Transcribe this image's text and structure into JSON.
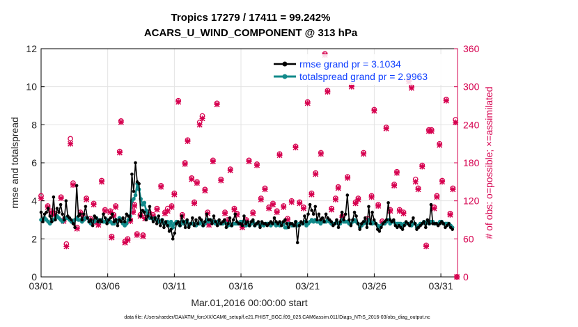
{
  "chart_data": {
    "type": "line",
    "title_line1": "Tropics 17279 / 17411 = 99.242%",
    "title_line2": "ACARS_U_WIND_COMPONENT @ 313 hPa",
    "xlabel": "Mar.01,2016 00:00:00 start",
    "ylabel": "rmse and totalspread",
    "ylabel_right": "# of obs: o=possible; ×=assimilated",
    "x_ticks": [
      "03/01",
      "03/06",
      "03/11",
      "03/16",
      "03/21",
      "03/26",
      "03/31"
    ],
    "x_tick_days": [
      0,
      5,
      10,
      15,
      20,
      25,
      30
    ],
    "xlim": [
      0,
      31.25
    ],
    "ylim": [
      0,
      12
    ],
    "y_ticks": [
      "0",
      "2",
      "4",
      "6",
      "8",
      "10",
      "12"
    ],
    "ylim_right": [
      0,
      360
    ],
    "y_ticks_right": [
      "0",
      "60",
      "120",
      "180",
      "240",
      "300",
      "360"
    ],
    "footer": "data file: /Users/raeder/DAI/ATM_forcXX/CAM6_setup/f.e21.FHIST_BGC.f09_025.CAM6assim.011/Diags_NTrS_2016-03/obs_diag_output.nc",
    "series": [
      {
        "name": "rmse",
        "legend": "rmse grand pr = 3.1034",
        "color": "#000000",
        "values": [
          3.4,
          2.9,
          3.3,
          3.4,
          3.6,
          3.2,
          2.9,
          4.2,
          3.0,
          3.6,
          3.4,
          3.8,
          3.3,
          3.0,
          4.0,
          3.2,
          3.1,
          3.0,
          2.8,
          2.6,
          4.8,
          3.2,
          3.3,
          3.0,
          3.3,
          3.7,
          3.1,
          2.9,
          3.0,
          2.7,
          3.2,
          3.1,
          2.9,
          3.0,
          2.9,
          3.3,
          3.1,
          2.8,
          3.0,
          3.1,
          3.3,
          2.9,
          3.0,
          2.7,
          3.0,
          2.9,
          3.1,
          2.9,
          3.3,
          3.2,
          3.0,
          5.4,
          4.5,
          6.0,
          5.0,
          4.9,
          3.2,
          3.5,
          3.4,
          3.0,
          3.2,
          3.7,
          3.1,
          2.9,
          3.1,
          2.8,
          3.2,
          2.7,
          3.0,
          2.6,
          2.9,
          2.7,
          2.4,
          2.5,
          2.0,
          2.3,
          2.8,
          2.9,
          2.7,
          3.2,
          2.9,
          2.6,
          3.0,
          2.6,
          2.8,
          3.1,
          2.7,
          3.0,
          2.8,
          3.1,
          3.0,
          2.7,
          2.9,
          3.3,
          3.0,
          3.0,
          2.8,
          3.2,
          2.9,
          2.7,
          3.0,
          2.8,
          2.9,
          3.0,
          2.6,
          2.8,
          3.1,
          2.7,
          3.0,
          3.3,
          2.9,
          2.8,
          2.8,
          2.7,
          3.2,
          2.8,
          2.9,
          2.7,
          2.9,
          3.0,
          2.7,
          2.8,
          2.9,
          2.6,
          2.9,
          2.8,
          2.8,
          2.7,
          2.8,
          2.9,
          2.8,
          3.1,
          2.9,
          2.8,
          2.9,
          2.7,
          2.9,
          3.0,
          2.8,
          2.6,
          2.8,
          2.8,
          2.7,
          2.9,
          1.8,
          2.7,
          2.9,
          2.8,
          3.2,
          2.9,
          3.3,
          3.8,
          3.5,
          3.3,
          3.7,
          3.0,
          3.3,
          3.0,
          3.1,
          2.9,
          3.3,
          3.1,
          3.0,
          2.9,
          2.7,
          2.8,
          3.0,
          2.6,
          2.9,
          3.4,
          3.0,
          3.3,
          4.3,
          3.0,
          2.7,
          3.0,
          3.4,
          3.2,
          2.8,
          2.5,
          2.8,
          2.9,
          3.1,
          2.6,
          3.7,
          2.8,
          3.4,
          3.0,
          2.8,
          2.5,
          2.4,
          2.6,
          2.8,
          2.9,
          3.0,
          3.9,
          3.0,
          2.9,
          3.0,
          2.7,
          2.6,
          2.7,
          2.6,
          2.5,
          2.7,
          2.9,
          2.8,
          2.7,
          2.9,
          3.1,
          2.8,
          2.5,
          2.6,
          2.7,
          2.8,
          2.9,
          2.6,
          3.0,
          2.8,
          3.8,
          2.8,
          2.8,
          2.8,
          2.7,
          2.8,
          2.9,
          2.8,
          2.6,
          2.7,
          2.8,
          2.6,
          2.5
        ]
      },
      {
        "name": "totalspread",
        "legend": "totalspread grand pr = 2.9963",
        "color": "#118a8a",
        "values": [
          3.0,
          3.0,
          3.1,
          3.0,
          2.9,
          2.8,
          3.0,
          3.0,
          3.1,
          3.2,
          3.1,
          3.0,
          2.9,
          3.0,
          3.1,
          3.1,
          3.0,
          2.9,
          2.9,
          3.0,
          3.1,
          3.0,
          3.0,
          2.9,
          3.0,
          3.1,
          3.1,
          2.9,
          2.8,
          2.9,
          2.9,
          3.1,
          3.0,
          2.9,
          3.0,
          2.9,
          2.9,
          3.0,
          2.9,
          2.9,
          2.8,
          2.8,
          3.0,
          2.9,
          3.1,
          3.0,
          2.8,
          2.7,
          2.8,
          3.0,
          3.2,
          4.0,
          4.1,
          4.3,
          4.9,
          4.6,
          4.1,
          3.8,
          3.9,
          3.5,
          3.3,
          3.1,
          3.1,
          3.0,
          3.1,
          3.0,
          2.9,
          2.9,
          3.0,
          2.8,
          2.8,
          2.9,
          2.7,
          2.9,
          2.6,
          2.8,
          2.9,
          2.8,
          2.7,
          2.9,
          2.8,
          2.9,
          2.9,
          2.7,
          2.8,
          2.8,
          2.8,
          2.7,
          2.8,
          2.8,
          2.9,
          2.7,
          2.8,
          3.0,
          2.9,
          3.0,
          2.9,
          2.9,
          2.8,
          2.9,
          2.8,
          2.8,
          2.8,
          2.9,
          2.8,
          2.7,
          2.8,
          2.7,
          2.8,
          2.8,
          2.8,
          2.8,
          2.9,
          2.9,
          2.9,
          2.7,
          2.8,
          2.7,
          2.8,
          2.9,
          2.7,
          2.8,
          2.8,
          2.7,
          2.8,
          2.7,
          2.8,
          2.8,
          2.8,
          2.7,
          2.8,
          2.8,
          2.7,
          2.8,
          2.7,
          2.8,
          2.8,
          2.6,
          2.6,
          2.8,
          2.8,
          2.7,
          2.7,
          2.9,
          2.7,
          2.8,
          2.8,
          2.8,
          2.9,
          2.7,
          2.8,
          2.9,
          3.0,
          2.9,
          3.0,
          2.9,
          2.9,
          2.8,
          2.9,
          2.9,
          2.9,
          3.0,
          2.9,
          2.8,
          2.8,
          2.8,
          2.9,
          2.8,
          2.8,
          3.0,
          2.9,
          2.9,
          2.9,
          2.8,
          2.8,
          2.9,
          3.0,
          2.9,
          2.8,
          2.6,
          2.7,
          2.8,
          2.9,
          2.8,
          3.0,
          2.9,
          2.8,
          2.9,
          2.8,
          2.7,
          2.6,
          2.7,
          2.8,
          2.8,
          2.9,
          3.0,
          2.8,
          2.9,
          2.9,
          2.8,
          2.8,
          2.8,
          2.8,
          2.7,
          2.8,
          2.8,
          2.8,
          2.8,
          2.7,
          2.8,
          2.8,
          2.6,
          2.7,
          2.8,
          2.8,
          2.9,
          2.8,
          2.9,
          2.8,
          2.9,
          2.9,
          2.8,
          2.8,
          2.8,
          2.9,
          2.9,
          2.8,
          2.8,
          2.8,
          2.8,
          2.7,
          2.6
        ]
      }
    ],
    "obs_counts": {
      "name": "# of obs",
      "color": "#d6004f",
      "points": [
        [
          0.0,
          128,
          124
        ],
        [
          0.5,
          112,
          110
        ],
        [
          0.75,
          104,
          102
        ],
        [
          1.0,
          100,
          98
        ],
        [
          1.5,
          126,
          124
        ],
        [
          1.7,
          90,
          88
        ],
        [
          1.9,
          52,
          48
        ],
        [
          2.2,
          218,
          210
        ],
        [
          2.4,
          148,
          145
        ],
        [
          2.7,
          78,
          76
        ],
        [
          2.95,
          102,
          100
        ],
        [
          3.2,
          94,
          92
        ],
        [
          3.4,
          124,
          122
        ],
        [
          3.7,
          92,
          90
        ],
        [
          3.95,
          116,
          114
        ],
        [
          4.1,
          88,
          86
        ],
        [
          4.3,
          84,
          82
        ],
        [
          4.55,
          152,
          150
        ],
        [
          4.8,
          106,
          104
        ],
        [
          5.2,
          104,
          102
        ],
        [
          5.3,
          64,
          62
        ],
        [
          5.45,
          98,
          96
        ],
        [
          5.6,
          112,
          110
        ],
        [
          5.9,
          198,
          196
        ],
        [
          6.0,
          246,
          244
        ],
        [
          6.3,
          56,
          54
        ],
        [
          6.5,
          60,
          58
        ],
        [
          6.7,
          90,
          88
        ],
        [
          6.9,
          104,
          102
        ],
        [
          7.0,
          114,
          112
        ],
        [
          7.2,
          68,
          66
        ],
        [
          7.45,
          98,
          96
        ],
        [
          7.65,
          66,
          64
        ],
        [
          7.8,
          94,
          92
        ],
        [
          8.1,
          102,
          100
        ],
        [
          8.4,
          98,
          96
        ],
        [
          8.7,
          108,
          106
        ],
        [
          9.0,
          144,
          142
        ],
        [
          9.3,
          102,
          100
        ],
        [
          9.5,
          108,
          104
        ],
        [
          9.8,
          112,
          110
        ],
        [
          10.0,
          132,
          130
        ],
        [
          10.3,
          278,
          276
        ],
        [
          10.6,
          98,
          96
        ],
        [
          10.8,
          180,
          178
        ],
        [
          11.0,
          216,
          214
        ],
        [
          11.3,
          156,
          154
        ],
        [
          11.5,
          118,
          116
        ],
        [
          11.7,
          150,
          148
        ],
        [
          11.9,
          244,
          240
        ],
        [
          12.1,
          254,
          250
        ],
        [
          12.3,
          138,
          136
        ],
        [
          12.5,
          102,
          100
        ],
        [
          12.6,
          84,
          82
        ],
        [
          12.9,
          184,
          182
        ],
        [
          13.2,
          274,
          272
        ],
        [
          13.5,
          154,
          152
        ],
        [
          13.8,
          102,
          100
        ],
        [
          14.0,
          90,
          88
        ],
        [
          14.2,
          170,
          168
        ],
        [
          14.5,
          108,
          106
        ],
        [
          14.7,
          100,
          98
        ],
        [
          15.1,
          80,
          78
        ],
        [
          15.4,
          90,
          88
        ],
        [
          15.6,
          184,
          182
        ],
        [
          15.9,
          102,
          100
        ],
        [
          16.2,
          178,
          176
        ],
        [
          16.5,
          124,
          122
        ],
        [
          16.8,
          140,
          138
        ],
        [
          17.1,
          110,
          108
        ],
        [
          17.4,
          116,
          114
        ],
        [
          17.7,
          104,
          102
        ],
        [
          17.9,
          194,
          192
        ],
        [
          18.2,
          112,
          110
        ],
        [
          18.5,
          92,
          90
        ],
        [
          18.8,
          120,
          118
        ],
        [
          19.1,
          206,
          204
        ],
        [
          19.4,
          118,
          116
        ],
        [
          19.7,
          110,
          108
        ],
        [
          20.0,
          276,
          274
        ],
        [
          20.3,
          132,
          130
        ],
        [
          20.6,
          164,
          162
        ],
        [
          21.0,
          196,
          194
        ],
        [
          21.3,
          352,
          350
        ],
        [
          21.5,
          294,
          292
        ],
        [
          21.8,
          108,
          106
        ],
        [
          22.1,
          124,
          122
        ],
        [
          22.3,
          142,
          140
        ],
        [
          22.6,
          96,
          94
        ],
        [
          23.0,
          158,
          156
        ],
        [
          23.3,
          302,
          300
        ],
        [
          23.6,
          118,
          116
        ],
        [
          23.8,
          124,
          122
        ],
        [
          24.2,
          196,
          194
        ],
        [
          24.5,
          92,
          90
        ],
        [
          24.8,
          128,
          126
        ],
        [
          25.0,
          264,
          262
        ],
        [
          25.3,
          114,
          112
        ],
        [
          25.6,
          88,
          86
        ],
        [
          25.9,
          236,
          234
        ],
        [
          26.2,
          106,
          104
        ],
        [
          26.5,
          146,
          144
        ],
        [
          26.7,
          166,
          164
        ],
        [
          26.9,
          106,
          104
        ],
        [
          27.2,
          102,
          100
        ],
        [
          27.6,
          310,
          308
        ],
        [
          27.8,
          300,
          298
        ],
        [
          28.1,
          154,
          150
        ],
        [
          28.3,
          140,
          138
        ],
        [
          28.6,
          176,
          174
        ],
        [
          28.9,
          50,
          48
        ],
        [
          29.1,
          232,
          230
        ],
        [
          29.3,
          232,
          230
        ],
        [
          29.5,
          110,
          108
        ],
        [
          29.7,
          128,
          126
        ],
        [
          29.9,
          210,
          208
        ],
        [
          30.1,
          152,
          150
        ],
        [
          30.4,
          280,
          278
        ],
        [
          30.7,
          100,
          98
        ],
        [
          30.9,
          140,
          138
        ],
        [
          31.1,
          248,
          244
        ],
        [
          31.2,
          0,
          0
        ]
      ]
    }
  }
}
